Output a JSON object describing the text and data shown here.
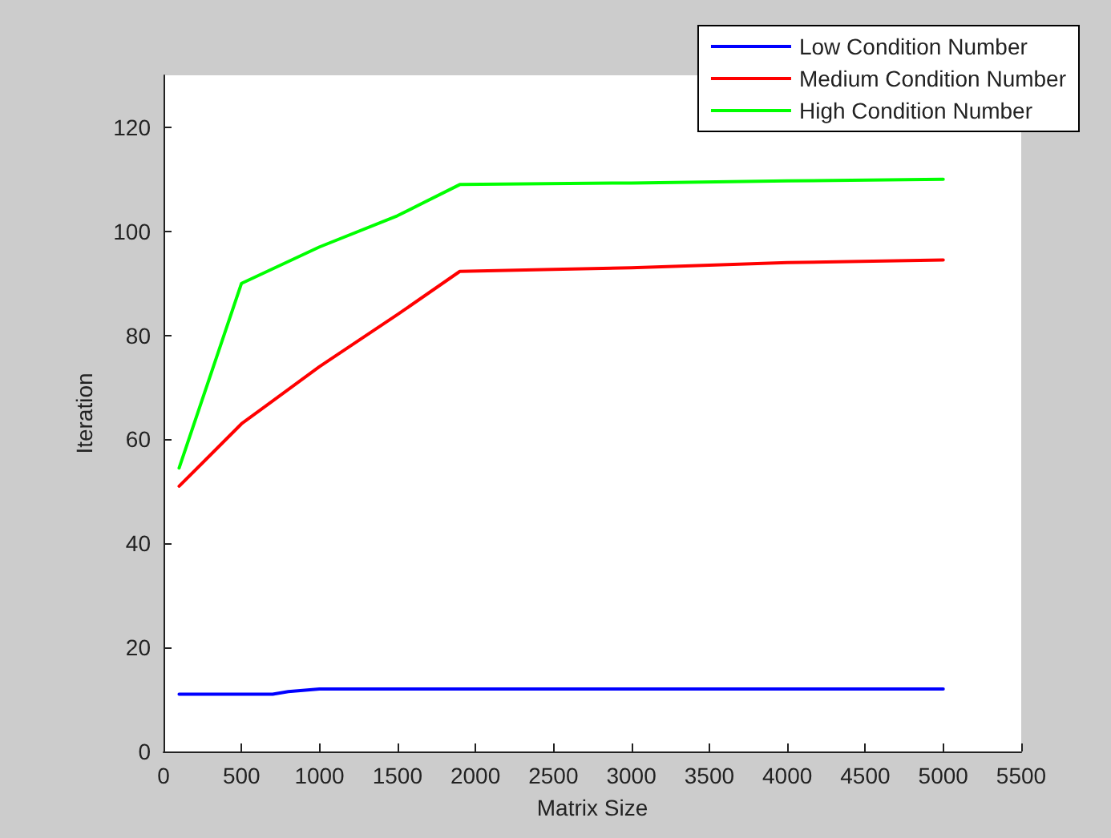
{
  "chart_data": {
    "type": "line",
    "xlabel": "Matrix Size",
    "ylabel": "Iteration",
    "xlim": [
      0,
      5500
    ],
    "xticks": [
      0,
      500,
      1000,
      1500,
      2000,
      2500,
      3000,
      3500,
      4000,
      4500,
      5000,
      5500
    ],
    "ylim": [
      0,
      130
    ],
    "yticks": [
      0,
      20,
      40,
      60,
      80,
      100,
      120
    ],
    "grid": false,
    "legend": "top right",
    "marker": "none",
    "line_style": "solid",
    "series": [
      {
        "name": "Low Condition Number",
        "color": "#0000ff",
        "x": [
          100,
          500,
          700,
          800,
          1000,
          2000,
          3000,
          4000,
          5000
        ],
        "values": [
          11,
          11,
          11,
          11.5,
          12,
          12,
          12,
          12,
          12
        ]
      },
      {
        "name": "Medium Condition Number",
        "color": "#ff0000",
        "x": [
          100,
          500,
          1000,
          1500,
          1900,
          2500,
          3000,
          4000,
          5000
        ],
        "values": [
          51,
          63,
          74,
          84,
          92.3,
          92.7,
          93,
          94,
          94.5
        ]
      },
      {
        "name": "High Condition Number",
        "color": "#00ff00",
        "x": [
          100,
          500,
          1000,
          1500,
          1900,
          3000,
          4000,
          5000
        ],
        "values": [
          54.5,
          90,
          97,
          103,
          109,
          109.3,
          109.7,
          110
        ]
      }
    ]
  }
}
